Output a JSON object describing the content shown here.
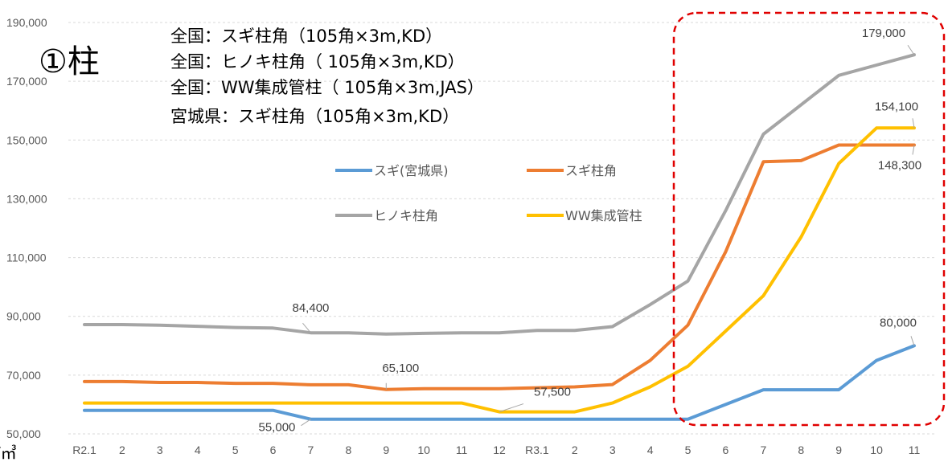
{
  "chart_data": {
    "type": "line",
    "title": "①柱",
    "subtitle_lines": [
      "全国：スギ柱角（105角×3m,KD）",
      "全国：ヒノキ柱角（ 105角×3m,KD）",
      "全国：WW集成管柱（ 105角×3m,JAS）",
      "宮城県：スギ柱角（105角×3m,KD）"
    ],
    "unit_label": "/㎥",
    "categories": [
      "R2.1",
      "2",
      "3",
      "4",
      "5",
      "6",
      "7",
      "8",
      "9",
      "10",
      "11",
      "12",
      "R3.1",
      "2",
      "3",
      "4",
      "5",
      "6",
      "7",
      "8",
      "9",
      "10",
      "11"
    ],
    "ylim": [
      50000,
      190000
    ],
    "yticks": [
      50000,
      70000,
      90000,
      110000,
      130000,
      150000,
      170000,
      190000
    ],
    "ytick_labels": [
      "50,000",
      "70,000",
      "90,000",
      "110,000",
      "130,000",
      "150,000",
      "170,000",
      "190,000"
    ],
    "grid": "horizontal dashed",
    "legend": "center, two rows",
    "series": [
      {
        "name": "スギ(宮城県)",
        "color": "#5B9BD5",
        "values": [
          58000,
          58000,
          58000,
          58000,
          58000,
          58000,
          55000,
          55000,
          55000,
          55000,
          55000,
          55000,
          55000,
          55000,
          55000,
          55000,
          55000,
          60000,
          65000,
          65000,
          65000,
          75000,
          80000
        ]
      },
      {
        "name": "スギ柱角",
        "color": "#ED7D31",
        "values": [
          67800,
          67800,
          67500,
          67500,
          67200,
          67200,
          66700,
          66700,
          65100,
          65400,
          65400,
          65400,
          65700,
          66000,
          66800,
          75000,
          87000,
          112000,
          142600,
          143000,
          148300,
          148300,
          148300
        ]
      },
      {
        "name": "ヒノキ柱角",
        "color": "#A5A5A5",
        "values": [
          87200,
          87200,
          87000,
          86600,
          86200,
          86000,
          84400,
          84400,
          84000,
          84200,
          84400,
          84400,
          85200,
          85200,
          86500,
          94000,
          102000,
          126000,
          152000,
          162000,
          172000,
          175500,
          179000
        ]
      },
      {
        "name": "WW集成管柱",
        "color": "#FFC000",
        "values": [
          60500,
          60500,
          60500,
          60500,
          60500,
          60500,
          60500,
          60500,
          60500,
          60500,
          60500,
          57500,
          57500,
          57500,
          60500,
          66000,
          73000,
          85000,
          97000,
          117000,
          142000,
          154100,
          154100
        ]
      }
    ],
    "annotations": [
      {
        "text": "84,400",
        "series": 2,
        "index": 6
      },
      {
        "text": "65,100",
        "series": 1,
        "index": 8
      },
      {
        "text": "57,500",
        "series": 3,
        "index": 11
      },
      {
        "text": "55,000",
        "series": 0,
        "index": 6
      },
      {
        "text": "179,000",
        "series": 2,
        "index": 22
      },
      {
        "text": "154,100",
        "series": 3,
        "index": 22
      },
      {
        "text": "148,300",
        "series": 1,
        "index": 22
      },
      {
        "text": "80,000",
        "series": 0,
        "index": 22
      }
    ],
    "highlight": "red dashed rounded box around months 5–11 of R3"
  }
}
